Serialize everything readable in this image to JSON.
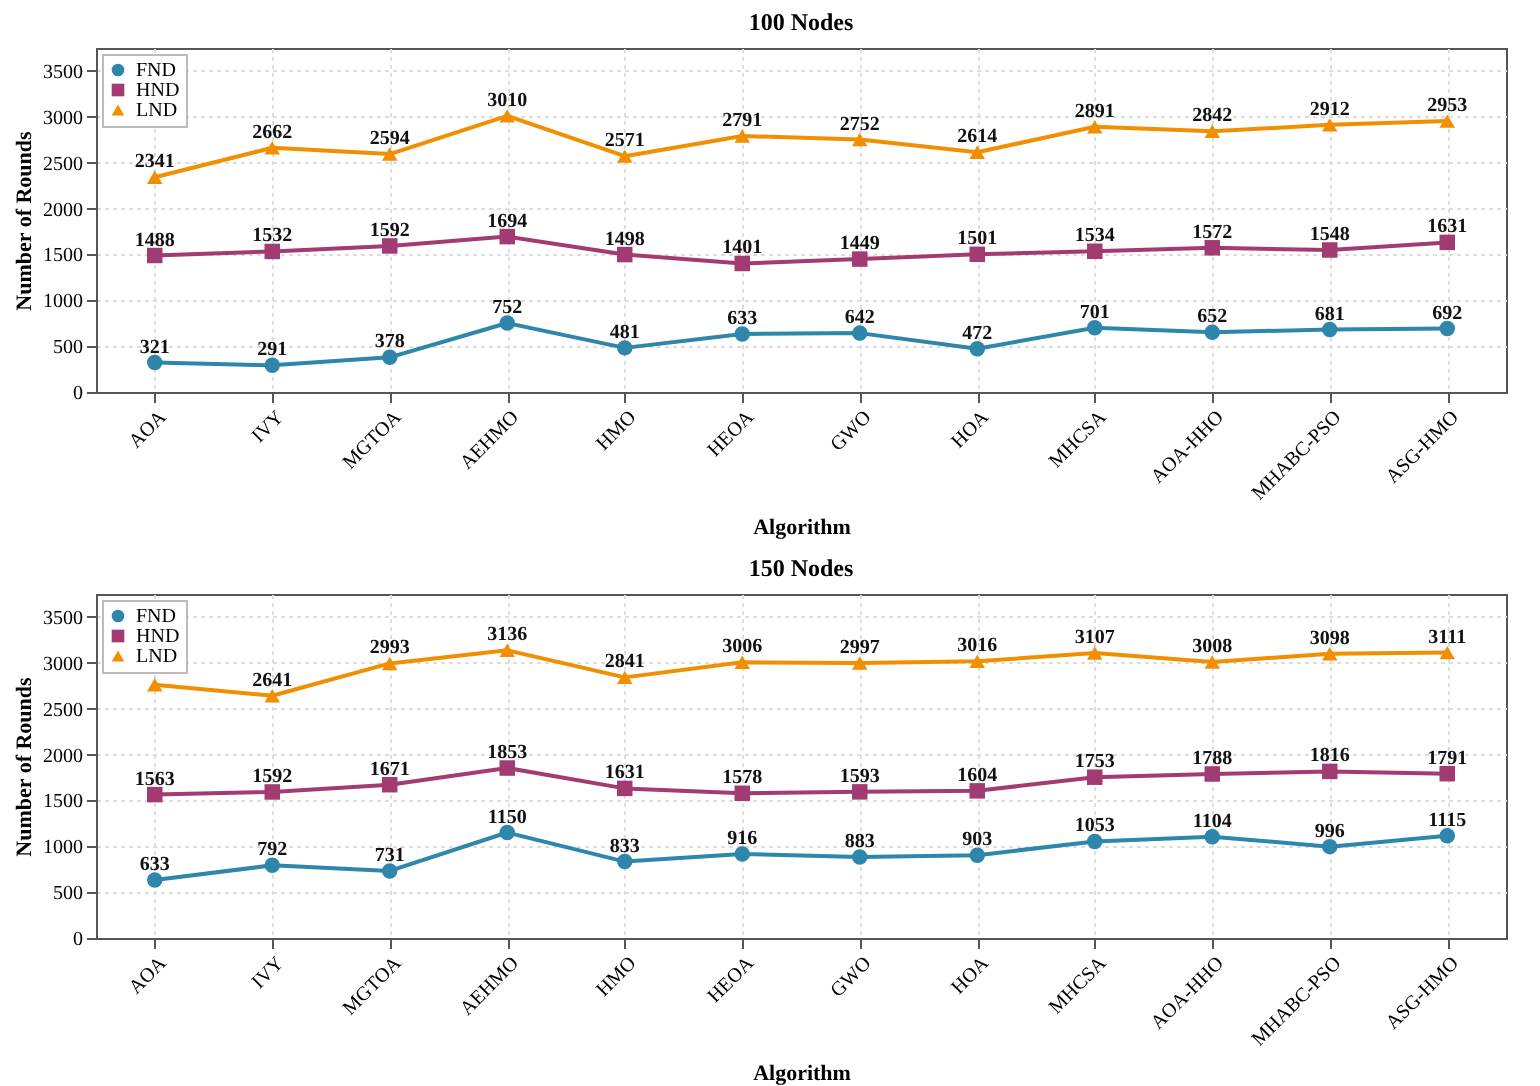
{
  "chart_data": [
    {
      "type": "line",
      "title": "100 Nodes",
      "xlabel": "Algorithm",
      "ylabel": "Number of Rounds",
      "categories": [
        "AOA",
        "IVY",
        "MGTOA",
        "AEHMO",
        "HMO",
        "HEOA",
        "GWO",
        "HOA",
        "MHCSA",
        "AOA-HHO",
        "MHABC-PSO",
        "ASG-HMO"
      ],
      "series": [
        {
          "name": "FND",
          "color": "#2e86ab",
          "marker": "circle",
          "values": [
            321,
            291,
            378,
            752,
            481,
            633,
            642,
            472,
            701,
            652,
            681,
            692
          ]
        },
        {
          "name": "HND",
          "color": "#a23b72",
          "marker": "square",
          "values": [
            1488,
            1532,
            1592,
            1694,
            1498,
            1401,
            1449,
            1501,
            1534,
            1572,
            1548,
            1631
          ]
        },
        {
          "name": "LND",
          "color": "#f18f01",
          "marker": "triangle",
          "values": [
            2341,
            2662,
            2594,
            3010,
            2571,
            2791,
            2752,
            2614,
            2891,
            2842,
            2912,
            2953
          ]
        }
      ],
      "ylim": [
        0,
        3750
      ],
      "yticks": [
        0,
        500,
        1000,
        1500,
        2000,
        2500,
        3000,
        3500
      ],
      "grid": true,
      "legend": "top left",
      "data_labels": true
    },
    {
      "type": "line",
      "title": "150 Nodes",
      "xlabel": "Algorithm",
      "ylabel": "Number of Rounds",
      "categories": [
        "AOA",
        "IVY",
        "MGTOA",
        "AEHMO",
        "HMO",
        "HEOA",
        "GWO",
        "HOA",
        "MHCSA",
        "AOA-HHO",
        "MHABC-PSO",
        "ASG-HMO"
      ],
      "series": [
        {
          "name": "FND",
          "color": "#2e86ab",
          "marker": "circle",
          "values": [
            633,
            792,
            731,
            1150,
            833,
            916,
            883,
            903,
            1053,
            1104,
            996,
            1115
          ],
          "value_labels": [
            "633",
            "792",
            "731",
            "1150",
            "833",
            "916",
            "883",
            "903",
            "1053",
            "1104",
            "996",
            "1115"
          ]
        },
        {
          "name": "HND",
          "color": "#a23b72",
          "marker": "square",
          "values": [
            1563,
            1592,
            1671,
            1853,
            1631,
            1578,
            1593,
            1604,
            1753,
            1788,
            1816,
            1791
          ],
          "value_labels": [
            "1563",
            "1592",
            "1671",
            "1853",
            "1631",
            "1578",
            "1593",
            "1604",
            "1753",
            "1788",
            "1816",
            "1791"
          ]
        },
        {
          "name": "LND",
          "color": "#f18f01",
          "marker": "triangle",
          "values": [
            2760,
            2641,
            2993,
            3136,
            2841,
            3006,
            2997,
            3016,
            3107,
            3008,
            3098,
            3111
          ],
          "value_labels": [
            null,
            "2641",
            "2993",
            "3136",
            "2841",
            "3006",
            "2997",
            "3016",
            "3107",
            "3008",
            "3098",
            "3111"
          ]
        }
      ],
      "ylim": [
        0,
        3750
      ],
      "yticks": [
        0,
        500,
        1000,
        1500,
        2000,
        2500,
        3000,
        3500
      ],
      "grid": true,
      "legend": "top left"
    }
  ]
}
